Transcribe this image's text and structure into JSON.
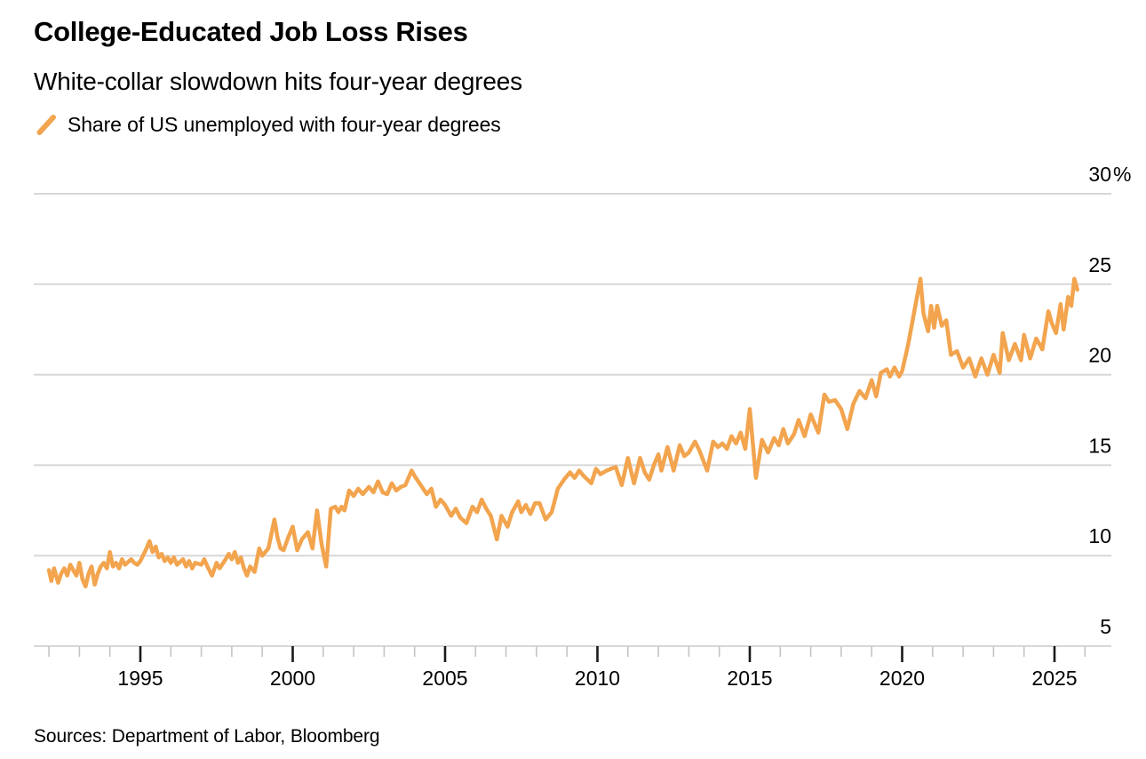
{
  "header": {
    "title": "College-Educated Job Loss Rises",
    "subtitle": "White-collar slowdown hits four-year degrees"
  },
  "legend": {
    "label": "Share of US unemployed with four-year degrees"
  },
  "source": {
    "text": "Sources: Department of Labor, Bloomberg"
  },
  "chart_data": {
    "type": "line",
    "title": "College-Educated Job Loss Rises",
    "subtitle": "White-collar slowdown hits four-year degrees",
    "legend_position": "top-left",
    "grid": "horizontal",
    "y_axis": {
      "side": "right",
      "unit": "%",
      "range": [
        3,
        30
      ],
      "ticks": [
        {
          "value": 30,
          "label": "30",
          "suffix": "%"
        },
        {
          "value": 25,
          "label": "25",
          "suffix": ""
        },
        {
          "value": 20,
          "label": "20",
          "suffix": ""
        },
        {
          "value": 15,
          "label": "15",
          "suffix": ""
        },
        {
          "value": 10,
          "label": "10",
          "suffix": ""
        },
        {
          "value": 5,
          "label": "5",
          "suffix": ""
        }
      ]
    },
    "x_axis": {
      "range": [
        1991.5,
        2026.9
      ],
      "major_ticks": [
        {
          "year": 1995,
          "label": "1995"
        },
        {
          "year": 2000,
          "label": "2000"
        },
        {
          "year": 2005,
          "label": "2005"
        },
        {
          "year": 2010,
          "label": "2010"
        },
        {
          "year": 2015,
          "label": "2015"
        },
        {
          "year": 2020,
          "label": "2020"
        },
        {
          "year": 2025,
          "label": "2025"
        }
      ],
      "minor_tick_years": [
        1992,
        1993,
        1994,
        1996,
        1997,
        1998,
        1999,
        2001,
        2002,
        2003,
        2004,
        2006,
        2007,
        2008,
        2009,
        2011,
        2012,
        2013,
        2014,
        2016,
        2017,
        2018,
        2019,
        2021,
        2022,
        2023,
        2024,
        2026
      ]
    },
    "colors": {
      "line": "#F2A44E",
      "grid": "#d7d7d7",
      "axis_line": "#d0d0d0",
      "minor_tick": "#c4c4c4",
      "major_tick": "#1a1a1a",
      "label": "#000000"
    },
    "series": [
      {
        "name": "Share of US unemployed with four-year degrees",
        "color": "#F2A44E",
        "points": [
          [
            1992.0,
            9.2
          ],
          [
            1992.08,
            8.6
          ],
          [
            1992.17,
            9.3
          ],
          [
            1992.3,
            8.5
          ],
          [
            1992.4,
            9.0
          ],
          [
            1992.5,
            9.3
          ],
          [
            1992.6,
            8.9
          ],
          [
            1992.7,
            9.5
          ],
          [
            1992.8,
            9.2
          ],
          [
            1992.9,
            8.9
          ],
          [
            1993.0,
            9.6
          ],
          [
            1993.1,
            8.7
          ],
          [
            1993.2,
            8.3
          ],
          [
            1993.3,
            9.0
          ],
          [
            1993.4,
            9.4
          ],
          [
            1993.5,
            8.4
          ],
          [
            1993.6,
            9.0
          ],
          [
            1993.7,
            9.4
          ],
          [
            1993.8,
            9.6
          ],
          [
            1993.9,
            9.3
          ],
          [
            1994.0,
            10.2
          ],
          [
            1994.1,
            9.4
          ],
          [
            1994.2,
            9.6
          ],
          [
            1994.3,
            9.3
          ],
          [
            1994.4,
            9.8
          ],
          [
            1994.5,
            9.5
          ],
          [
            1994.7,
            9.8
          ],
          [
            1994.8,
            9.6
          ],
          [
            1994.9,
            9.5
          ],
          [
            1995.0,
            9.7
          ],
          [
            1995.2,
            10.4
          ],
          [
            1995.3,
            10.8
          ],
          [
            1995.4,
            10.2
          ],
          [
            1995.5,
            10.5
          ],
          [
            1995.6,
            9.9
          ],
          [
            1995.7,
            10.1
          ],
          [
            1995.8,
            9.7
          ],
          [
            1995.9,
            9.9
          ],
          [
            1996.0,
            9.6
          ],
          [
            1996.1,
            9.9
          ],
          [
            1996.2,
            9.5
          ],
          [
            1996.4,
            9.8
          ],
          [
            1996.5,
            9.4
          ],
          [
            1996.6,
            9.7
          ],
          [
            1996.7,
            9.3
          ],
          [
            1996.8,
            9.6
          ],
          [
            1997.0,
            9.5
          ],
          [
            1997.1,
            9.8
          ],
          [
            1997.2,
            9.4
          ],
          [
            1997.35,
            8.9
          ],
          [
            1997.5,
            9.6
          ],
          [
            1997.6,
            9.3
          ],
          [
            1997.8,
            9.8
          ],
          [
            1997.9,
            10.1
          ],
          [
            1998.0,
            9.8
          ],
          [
            1998.1,
            10.2
          ],
          [
            1998.2,
            9.6
          ],
          [
            1998.3,
            9.9
          ],
          [
            1998.4,
            9.3
          ],
          [
            1998.5,
            8.9
          ],
          [
            1998.6,
            9.4
          ],
          [
            1998.75,
            9.1
          ],
          [
            1998.9,
            10.4
          ],
          [
            1999.0,
            10.0
          ],
          [
            1999.2,
            10.4
          ],
          [
            1999.4,
            12.0
          ],
          [
            1999.5,
            11.0
          ],
          [
            1999.6,
            10.4
          ],
          [
            1999.7,
            10.3
          ],
          [
            1999.85,
            11.0
          ],
          [
            2000.0,
            11.6
          ],
          [
            2000.15,
            10.3
          ],
          [
            2000.3,
            10.9
          ],
          [
            2000.5,
            11.3
          ],
          [
            2000.65,
            10.4
          ],
          [
            2000.8,
            12.5
          ],
          [
            2000.95,
            10.6
          ],
          [
            2001.1,
            9.4
          ],
          [
            2001.25,
            12.6
          ],
          [
            2001.4,
            12.7
          ],
          [
            2001.5,
            12.4
          ],
          [
            2001.6,
            12.7
          ],
          [
            2001.7,
            12.5
          ],
          [
            2001.85,
            13.6
          ],
          [
            2002.0,
            13.3
          ],
          [
            2002.15,
            13.7
          ],
          [
            2002.3,
            13.4
          ],
          [
            2002.5,
            13.8
          ],
          [
            2002.65,
            13.5
          ],
          [
            2002.8,
            14.1
          ],
          [
            2002.95,
            13.5
          ],
          [
            2003.1,
            13.4
          ],
          [
            2003.25,
            14.0
          ],
          [
            2003.4,
            13.6
          ],
          [
            2003.55,
            13.8
          ],
          [
            2003.7,
            13.9
          ],
          [
            2003.9,
            14.7
          ],
          [
            2004.0,
            14.4
          ],
          [
            2004.2,
            13.9
          ],
          [
            2004.4,
            13.4
          ],
          [
            2004.55,
            13.7
          ],
          [
            2004.7,
            12.7
          ],
          [
            2004.85,
            13.1
          ],
          [
            2005.0,
            12.8
          ],
          [
            2005.2,
            12.2
          ],
          [
            2005.35,
            12.6
          ],
          [
            2005.5,
            12.1
          ],
          [
            2005.7,
            11.8
          ],
          [
            2005.9,
            12.7
          ],
          [
            2006.05,
            12.4
          ],
          [
            2006.2,
            13.1
          ],
          [
            2006.35,
            12.6
          ],
          [
            2006.5,
            12.2
          ],
          [
            2006.7,
            10.9
          ],
          [
            2006.85,
            12.2
          ],
          [
            2007.05,
            11.6
          ],
          [
            2007.2,
            12.4
          ],
          [
            2007.4,
            13.0
          ],
          [
            2007.5,
            12.4
          ],
          [
            2007.65,
            12.8
          ],
          [
            2007.8,
            12.3
          ],
          [
            2007.95,
            12.9
          ],
          [
            2008.1,
            12.9
          ],
          [
            2008.3,
            12.0
          ],
          [
            2008.5,
            12.4
          ],
          [
            2008.7,
            13.7
          ],
          [
            2008.9,
            14.2
          ],
          [
            2009.1,
            14.6
          ],
          [
            2009.25,
            14.3
          ],
          [
            2009.4,
            14.7
          ],
          [
            2009.55,
            14.4
          ],
          [
            2009.8,
            14.0
          ],
          [
            2009.95,
            14.8
          ],
          [
            2010.1,
            14.5
          ],
          [
            2010.3,
            14.7
          ],
          [
            2010.6,
            14.9
          ],
          [
            2010.8,
            13.9
          ],
          [
            2011.0,
            15.4
          ],
          [
            2011.2,
            14.0
          ],
          [
            2011.4,
            15.4
          ],
          [
            2011.55,
            14.6
          ],
          [
            2011.7,
            14.2
          ],
          [
            2011.85,
            15.0
          ],
          [
            2012.0,
            15.6
          ],
          [
            2012.1,
            14.7
          ],
          [
            2012.3,
            16.0
          ],
          [
            2012.5,
            14.7
          ],
          [
            2012.7,
            16.1
          ],
          [
            2012.85,
            15.5
          ],
          [
            2013.0,
            15.7
          ],
          [
            2013.2,
            16.3
          ],
          [
            2013.35,
            15.8
          ],
          [
            2013.6,
            14.7
          ],
          [
            2013.8,
            16.3
          ],
          [
            2013.95,
            16.0
          ],
          [
            2014.1,
            16.2
          ],
          [
            2014.25,
            15.9
          ],
          [
            2014.4,
            16.6
          ],
          [
            2014.55,
            16.2
          ],
          [
            2014.7,
            16.8
          ],
          [
            2014.85,
            15.9
          ],
          [
            2015.0,
            18.1
          ],
          [
            2015.2,
            14.3
          ],
          [
            2015.4,
            16.4
          ],
          [
            2015.6,
            15.7
          ],
          [
            2015.8,
            16.5
          ],
          [
            2015.95,
            16.1
          ],
          [
            2016.1,
            17.0
          ],
          [
            2016.25,
            16.2
          ],
          [
            2016.45,
            16.7
          ],
          [
            2016.6,
            17.5
          ],
          [
            2016.8,
            16.6
          ],
          [
            2017.0,
            17.8
          ],
          [
            2017.25,
            16.8
          ],
          [
            2017.45,
            18.9
          ],
          [
            2017.6,
            18.5
          ],
          [
            2017.8,
            18.6
          ],
          [
            2018.0,
            18.1
          ],
          [
            2018.2,
            17.0
          ],
          [
            2018.4,
            18.4
          ],
          [
            2018.6,
            19.1
          ],
          [
            2018.8,
            18.7
          ],
          [
            2019.0,
            19.7
          ],
          [
            2019.15,
            18.8
          ],
          [
            2019.3,
            20.1
          ],
          [
            2019.5,
            20.3
          ],
          [
            2019.6,
            19.9
          ],
          [
            2019.75,
            20.4
          ],
          [
            2019.9,
            19.9
          ],
          [
            2020.0,
            20.2
          ],
          [
            2020.2,
            21.7
          ],
          [
            2020.4,
            23.5
          ],
          [
            2020.6,
            25.3
          ],
          [
            2020.7,
            23.4
          ],
          [
            2020.85,
            22.4
          ],
          [
            2020.95,
            23.8
          ],
          [
            2021.05,
            22.6
          ],
          [
            2021.15,
            23.8
          ],
          [
            2021.3,
            22.7
          ],
          [
            2021.45,
            23.0
          ],
          [
            2021.6,
            21.1
          ],
          [
            2021.8,
            21.3
          ],
          [
            2022.0,
            20.4
          ],
          [
            2022.2,
            20.9
          ],
          [
            2022.4,
            19.9
          ],
          [
            2022.6,
            20.9
          ],
          [
            2022.8,
            20.0
          ],
          [
            2023.0,
            21.1
          ],
          [
            2023.2,
            20.1
          ],
          [
            2023.3,
            22.3
          ],
          [
            2023.5,
            20.8
          ],
          [
            2023.7,
            21.7
          ],
          [
            2023.9,
            20.8
          ],
          [
            2024.0,
            22.2
          ],
          [
            2024.2,
            20.9
          ],
          [
            2024.4,
            22.0
          ],
          [
            2024.6,
            21.4
          ],
          [
            2024.8,
            23.5
          ],
          [
            2024.9,
            22.9
          ],
          [
            2025.05,
            22.3
          ],
          [
            2025.2,
            23.9
          ],
          [
            2025.3,
            22.5
          ],
          [
            2025.45,
            24.3
          ],
          [
            2025.55,
            23.8
          ],
          [
            2025.65,
            25.3
          ],
          [
            2025.75,
            24.7
          ]
        ]
      }
    ]
  }
}
